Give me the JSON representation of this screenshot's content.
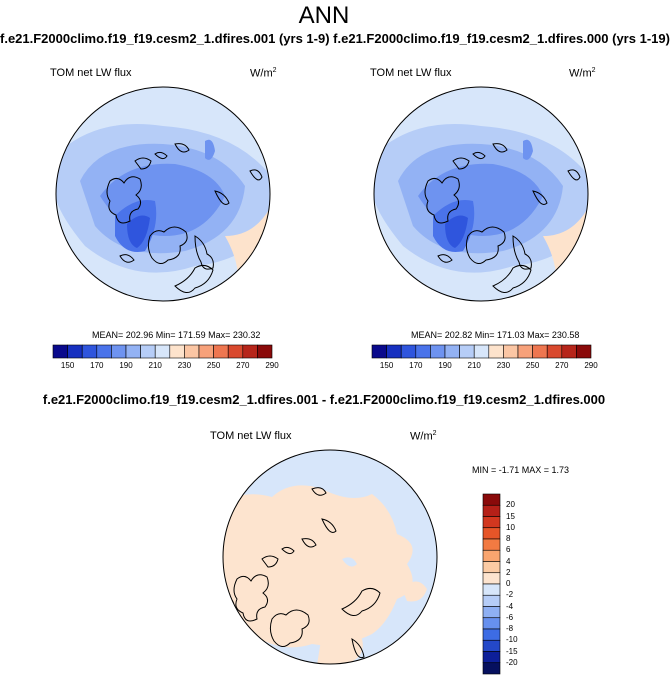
{
  "title": "ANN",
  "header_left": "f.e21.F2000climo.f19_f19.cesm2_1.dfires.001 (yrs 1-9)",
  "header_right": "f.e21.F2000climo.f19_f19.cesm2_1.dfires.000 (yrs 1-19)",
  "panels": [
    {
      "var": "TOM net LW flux",
      "units": "W/m",
      "units_exp": "2",
      "stats": "MEAN= 202.96  Min= 171.59  Max= 230.32",
      "colorbar_ticks": [
        "150",
        "170",
        "190",
        "210",
        "230",
        "250",
        "270",
        "290"
      ]
    },
    {
      "var": "TOM net LW flux",
      "units": "W/m",
      "units_exp": "2",
      "stats": "MEAN= 202.82  Min= 171.03  Max= 230.58",
      "colorbar_ticks": [
        "150",
        "170",
        "190",
        "210",
        "230",
        "250",
        "270",
        "290"
      ]
    }
  ],
  "diff": {
    "title": "f.e21.F2000climo.f19_f19.cesm2_1.dfires.001 - f.e21.F2000climo.f19_f19.cesm2_1.dfires.000",
    "var": "TOM net LW flux",
    "units": "W/m",
    "units_exp": "2",
    "stats": "MIN = -1.71 MAX =  1.73",
    "colorbar_ticks": [
      "20",
      "15",
      "10",
      "8",
      "6",
      "4",
      "2",
      "0",
      "-2",
      "-4",
      "-6",
      "-8",
      "-10",
      "-15",
      "-20"
    ]
  },
  "colors": {
    "abs_scale": [
      "#0a0a8c",
      "#1730c0",
      "#2f55dd",
      "#4a73ea",
      "#6e93f0",
      "#93b2f4",
      "#b6cdf7",
      "#d7e6fa",
      "#fde3cc",
      "#fbc6a4",
      "#f7a17a",
      "#ee7650",
      "#d9492e",
      "#b6251a",
      "#8a0a0a"
    ],
    "diff_scale": [
      "#8a0a0a",
      "#b52018",
      "#d2371f",
      "#e65528",
      "#f27a42",
      "#f9a56f",
      "#fbcba4",
      "#fde4cf",
      "#d7e6fa",
      "#b6cdf7",
      "#8fb0f3",
      "#6790ee",
      "#3d6ce4",
      "#2448c8",
      "#0d1f99",
      "#06105e"
    ]
  }
}
